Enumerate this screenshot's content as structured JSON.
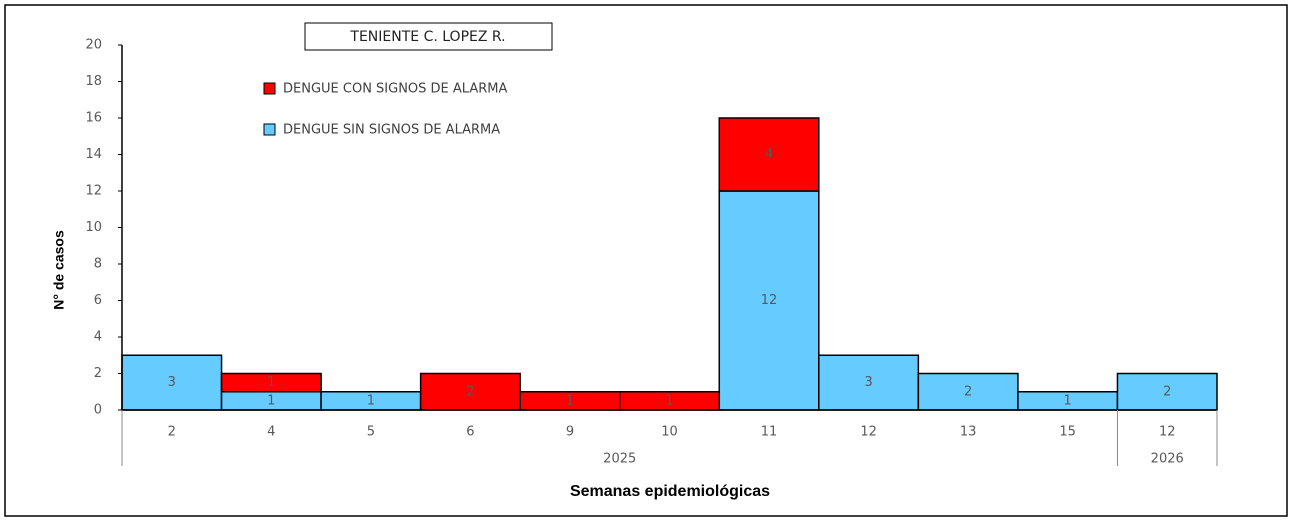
{
  "chart_data": {
    "type": "stacked_bar",
    "title": "TENIENTE C. LOPEZ R.",
    "y_label": "N° de casos",
    "x_label": "Semanas epidemiológicas",
    "categories": [
      "2",
      "4",
      "5",
      "6",
      "9",
      "10",
      "11",
      "12",
      "13",
      "15",
      "12"
    ],
    "groups": [
      {
        "label": "2025",
        "count": 10
      },
      {
        "label": "2026",
        "count": 1
      }
    ],
    "series": [
      {
        "name": "DENGUE SIN SIGNOS DE ALARMA",
        "color": "#66ccff",
        "values": [
          3,
          1,
          1,
          null,
          null,
          null,
          12,
          3,
          2,
          1,
          2
        ]
      },
      {
        "name": "DENGUE CON SIGNOS DE ALARMA",
        "color": "#ff0000",
        "values": [
          null,
          1,
          null,
          2,
          1,
          1,
          4,
          null,
          null,
          null,
          null
        ]
      }
    ],
    "ylim": [
      0,
      20
    ],
    "yticks": [
      0,
      2,
      4,
      6,
      8,
      10,
      12,
      14,
      16,
      18,
      20
    ]
  }
}
